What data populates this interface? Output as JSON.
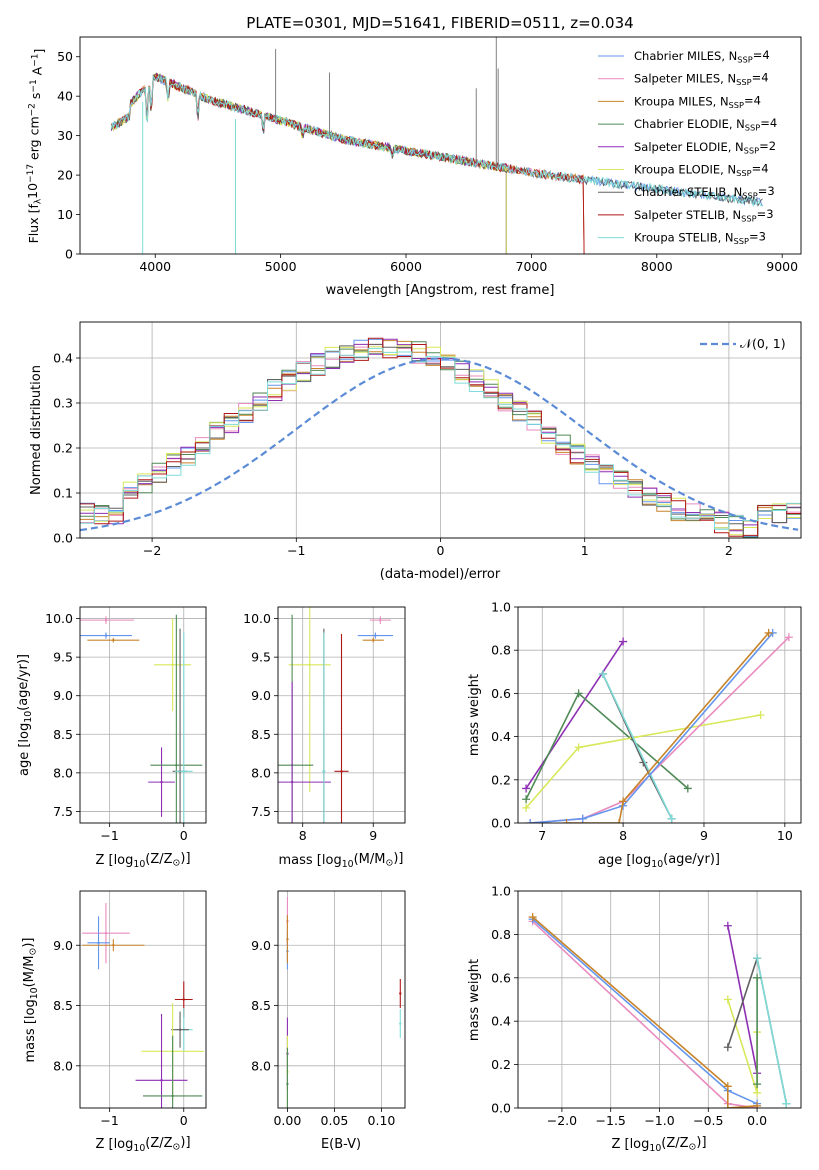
{
  "chart_data": [
    {
      "id": "spectrum",
      "type": "line",
      "title": "PLATE=0301, MJD=51641, FIBERID=0511, z=0.034",
      "xlabel": "wavelength [Angstrom, rest frame]",
      "ylabel_main": "Flux [f",
      "ylabel_sub": "λ",
      "ylabel_rest": "10",
      "ylabel_sup1": "−17",
      "ylabel_tail": " erg cm",
      "ylabel_sup2": "−2",
      "ylabel_tail2": " s",
      "ylabel_sup3": "−1",
      "ylabel_tail3": " A",
      "ylabel_sup4": "−1",
      "ylabel_end": "]",
      "xlim": [
        3400,
        9150
      ],
      "ylim": [
        0,
        55
      ],
      "xticks": [
        4000,
        5000,
        6000,
        7000,
        8000,
        9000
      ],
      "yticks": [
        0,
        10,
        20,
        30,
        40,
        50
      ],
      "grid": false,
      "legend_position": "top-right",
      "series": [
        {
          "name_pre": "Chabrier MILES, N",
          "name_sub": "SSP",
          "name_post": "=4",
          "color": "#6495ed",
          "start": 3650,
          "end": 8850
        },
        {
          "name_pre": "Salpeter MILES, N",
          "name_sub": "SSP",
          "name_post": "=4",
          "color": "#e98bbf",
          "start": 3650,
          "end": 7420
        },
        {
          "name_pre": "Kroupa MILES, N",
          "name_sub": "SSP",
          "name_post": "=4",
          "color": "#c7842a",
          "start": 3650,
          "end": 7420
        },
        {
          "name_pre": "Chabrier ELODIE, N",
          "name_sub": "SSP",
          "name_post": "=4",
          "color": "#4f8a56",
          "start": 3650,
          "end": 6800
        },
        {
          "name_pre": "Salpeter ELODIE, N",
          "name_sub": "SSP",
          "name_post": "=2",
          "color": "#8e2fb4",
          "start": 3650,
          "end": 6800
        },
        {
          "name_pre": "Kroupa ELODIE, N",
          "name_sub": "SSP",
          "name_post": "=4",
          "color": "#d8e85a",
          "start": 3650,
          "end": 6800
        },
        {
          "name_pre": "Chabrier STELIB, N",
          "name_sub": "SSP",
          "name_post": "=3",
          "color": "#606060",
          "start": 3650,
          "end": 8850
        },
        {
          "name_pre": "Salpeter STELIB, N",
          "name_sub": "SSP",
          "name_post": "=3",
          "color": "#b01818",
          "start": 3650,
          "end": 7420
        },
        {
          "name_pre": "Kroupa STELIB, N",
          "name_sub": "SSP",
          "name_post": "=3",
          "color": "#7fdcd8",
          "start": 3650,
          "end": 8850
        }
      ]
    },
    {
      "id": "residuals",
      "type": "line",
      "xlabel": "(data-model)/error",
      "ylabel": "Normed distribution",
      "xlim": [
        -2.5,
        2.5
      ],
      "ylim": [
        0,
        0.48
      ],
      "xticks": [
        -2,
        -1,
        0,
        1,
        2
      ],
      "yticks": [
        0.0,
        0.1,
        0.2,
        0.3,
        0.4
      ],
      "grid": true,
      "legend_position": "top-right",
      "gaussian_label": "𝒩(0, 1)",
      "gaussian_color": "#5b8bd6",
      "bin_width": 0.1
    },
    {
      "id": "age_vs_Z",
      "type": "scatter",
      "xlabel_pre": "Z [log",
      "xlabel_sub": "10",
      "xlabel_post": "(Z/Z",
      "xlabel_sub2": "⊙",
      "xlabel_end": ")]",
      "ylabel_pre": "age  [log",
      "ylabel_sub": "10",
      "ylabel_post": "(age/yr)]",
      "xlim": [
        -1.4,
        0.3
      ],
      "ylim": [
        7.35,
        10.15
      ],
      "xticks": [
        -1,
        0
      ],
      "yticks": [
        7.5,
        8.0,
        8.5,
        9.0,
        9.5,
        10.0
      ],
      "grid": true,
      "points": [
        {
          "color": "#e98bbf",
          "x": -1.05,
          "y": 9.98,
          "xerr": 0.38,
          "yerr": 0.05
        },
        {
          "color": "#6495ed",
          "x": -1.05,
          "y": 9.78,
          "xerr": 0.35,
          "yerr": 0.04
        },
        {
          "color": "#c7842a",
          "x": -0.95,
          "y": 9.72,
          "xerr": 0.35,
          "yerr": 0.03
        },
        {
          "color": "#d8e85a",
          "x": -0.15,
          "y": 9.4,
          "xerr": 0.25,
          "yerr": 0.6
        },
        {
          "color": "#8e2fb4",
          "x": -0.3,
          "y": 7.88,
          "xerr": 0.18,
          "yerr": 0.45
        },
        {
          "color": "#4f8a56",
          "x": -0.1,
          "y": 8.1,
          "xerr": 0.35,
          "yerr": 1.95
        },
        {
          "color": "#606060",
          "x": -0.05,
          "y": 8.02,
          "xerr": 0.1,
          "yerr": 1.85
        },
        {
          "color": "#7fdcd8",
          "x": 0.0,
          "y": 8.02,
          "xerr": 0.12,
          "yerr": 1.8
        }
      ]
    },
    {
      "id": "age_vs_mass",
      "type": "scatter",
      "xlabel_pre": "mass [log",
      "xlabel_sub": "10",
      "xlabel_post": "(M/M",
      "xlabel_sub2": "⊙",
      "xlabel_end": ")]",
      "xlim": [
        7.65,
        9.45
      ],
      "ylim": [
        7.35,
        10.15
      ],
      "xticks": [
        8,
        9
      ],
      "yticks": [
        7.5,
        8.0,
        8.5,
        9.0,
        9.5,
        10.0
      ],
      "grid": true,
      "points": [
        {
          "color": "#e98bbf",
          "x": 9.1,
          "y": 9.98,
          "xerr": 0.15,
          "yerr": 0.05
        },
        {
          "color": "#6495ed",
          "x": 9.03,
          "y": 9.78,
          "xerr": 0.25,
          "yerr": 0.04
        },
        {
          "color": "#c7842a",
          "x": 9.0,
          "y": 9.72,
          "xerr": 0.15,
          "yerr": 0.03
        },
        {
          "color": "#d8e85a",
          "x": 8.1,
          "y": 9.4,
          "xerr": 0.3,
          "yerr": 1.65
        },
        {
          "color": "#4f8a56",
          "x": 7.85,
          "y": 8.1,
          "xerr": 0.3,
          "yerr": 1.95
        },
        {
          "color": "#8e2fb4",
          "x": 7.85,
          "y": 7.88,
          "xerr": 0.55,
          "yerr": 1.3
        },
        {
          "color": "#606060",
          "x": 8.3,
          "y": 8.02,
          "xerr": 0.02,
          "yerr": 1.85
        },
        {
          "color": "#7fdcd8",
          "x": 8.3,
          "y": 8.02,
          "xerr": 0.02,
          "yerr": 1.8
        },
        {
          "color": "#b01818",
          "x": 8.55,
          "y": 8.02,
          "xerr": 0.1,
          "yerr": 1.78
        }
      ]
    },
    {
      "id": "weight_vs_age",
      "type": "line",
      "xlabel_pre": "age  [log",
      "xlabel_sub": "10",
      "xlabel_post": "(age/yr)]",
      "ylabel": "mass weight",
      "xlim": [
        6.7,
        10.2
      ],
      "ylim": [
        0,
        1.0
      ],
      "xticks": [
        7,
        8,
        9,
        10
      ],
      "yticks": [
        0.0,
        0.2,
        0.4,
        0.6,
        0.8,
        1.0
      ],
      "grid": true,
      "series": [
        {
          "color": "#8e2fb4",
          "points": [
            [
              6.8,
              0.16
            ],
            [
              8.0,
              0.84
            ]
          ]
        },
        {
          "color": "#4f8a56",
          "points": [
            [
              6.8,
              0.11
            ],
            [
              7.45,
              0.6
            ],
            [
              8.8,
              0.16
            ]
          ]
        },
        {
          "color": "#d8e85a",
          "points": [
            [
              6.8,
              0.07
            ],
            [
              7.45,
              0.35
            ],
            [
              9.7,
              0.5
            ]
          ]
        },
        {
          "color": "#606060",
          "points": [
            [
              7.75,
              0.69
            ],
            [
              8.25,
              0.28
            ],
            [
              8.6,
              0.02
            ]
          ]
        },
        {
          "color": "#7fdcd8",
          "points": [
            [
              7.75,
              0.69
            ],
            [
              8.6,
              0.02
            ]
          ]
        },
        {
          "color": "#e98bbf",
          "points": [
            [
              6.85,
              0.0
            ],
            [
              7.5,
              0.02
            ],
            [
              8.0,
              0.1
            ],
            [
              10.05,
              0.86
            ]
          ]
        },
        {
          "color": "#6495ed",
          "points": [
            [
              6.85,
              0.0
            ],
            [
              7.5,
              0.02
            ],
            [
              8.0,
              0.08
            ],
            [
              9.85,
              0.88
            ]
          ]
        },
        {
          "color": "#c7842a",
          "points": [
            [
              7.3,
              0.0
            ],
            [
              7.95,
              0.0
            ],
            [
              8.0,
              0.1
            ],
            [
              9.8,
              0.88
            ]
          ]
        }
      ]
    },
    {
      "id": "mass_vs_Z",
      "type": "scatter",
      "xlabel_pre": "Z [log",
      "xlabel_sub": "10",
      "xlabel_post": "(Z/Z",
      "xlabel_sub2": "⊙",
      "xlabel_end": ")]",
      "ylabel_pre": "mass [log",
      "ylabel_sub": "10",
      "ylabel_post": "(M/M",
      "ylabel_sub2": "⊙",
      "ylabel_end": ")]",
      "xlim": [
        -1.4,
        0.3
      ],
      "ylim": [
        7.65,
        9.45
      ],
      "xticks": [
        -1,
        0
      ],
      "yticks": [
        8.0,
        8.5,
        9.0
      ],
      "grid": true,
      "points": [
        {
          "color": "#e98bbf",
          "x": -1.05,
          "y": 9.1,
          "xerr": 0.32,
          "yerr": 0.25
        },
        {
          "color": "#6495ed",
          "x": -1.15,
          "y": 9.02,
          "xerr": 0.15,
          "yerr": 0.22
        },
        {
          "color": "#c7842a",
          "x": -0.95,
          "y": 9.0,
          "xerr": 0.42,
          "yerr": 0.05
        },
        {
          "color": "#b01818",
          "x": 0.0,
          "y": 8.55,
          "xerr": 0.12,
          "yerr": 0.15
        },
        {
          "color": "#7fdcd8",
          "x": 0.0,
          "y": 8.3,
          "xerr": 0.12,
          "yerr": 0.18
        },
        {
          "color": "#606060",
          "x": -0.05,
          "y": 8.3,
          "xerr": 0.12,
          "yerr": 0.15
        },
        {
          "color": "#d8e85a",
          "x": -0.15,
          "y": 8.12,
          "xerr": 0.42,
          "yerr": 0.4
        },
        {
          "color": "#8e2fb4",
          "x": -0.3,
          "y": 7.88,
          "xerr": 0.35,
          "yerr": 0.55
        },
        {
          "color": "#4f8a56",
          "x": -0.15,
          "y": 7.75,
          "xerr": 0.4,
          "yerr": 0.5
        }
      ]
    },
    {
      "id": "mass_vs_EBV",
      "type": "scatter",
      "xlabel": "E(B-V)",
      "xlim": [
        -0.01,
        0.125
      ],
      "ylim": [
        7.65,
        9.45
      ],
      "xticks": [
        0.0,
        0.05,
        0.1
      ],
      "xtick_labels": [
        "0.00",
        "0.05",
        "0.10"
      ],
      "yticks": [
        8.0,
        8.5,
        9.0
      ],
      "grid": true,
      "points": [
        {
          "color": "#e98bbf",
          "x": 0.0,
          "y": 9.2,
          "yerr": 0.2
        },
        {
          "color": "#6495ed",
          "x": 0.0,
          "y": 8.95,
          "yerr": 0.15
        },
        {
          "color": "#c7842a",
          "x": 0.0,
          "y": 9.05,
          "yerr": 0.2
        },
        {
          "color": "#8e2fb4",
          "x": 0.0,
          "y": 8.1,
          "yerr": 0.3
        },
        {
          "color": "#d8e85a",
          "x": 0.0,
          "y": 7.95,
          "yerr": 0.3
        },
        {
          "color": "#4f8a56",
          "x": 0.0,
          "y": 7.85,
          "yerr": 0.3
        },
        {
          "color": "#b01818",
          "x": 0.12,
          "y": 8.6,
          "yerr": 0.12
        },
        {
          "color": "#7fdcd8",
          "x": 0.12,
          "y": 8.35,
          "yerr": 0.12
        }
      ]
    },
    {
      "id": "weight_vs_Z",
      "type": "line",
      "xlabel_pre": "Z [log",
      "xlabel_sub": "10",
      "xlabel_post": "(Z/Z",
      "xlabel_sub2": "⊙",
      "xlabel_end": ")]",
      "ylabel": "mass weight",
      "xlim": [
        -2.45,
        0.45
      ],
      "ylim": [
        0,
        1.0
      ],
      "xticks": [
        -2.0,
        -1.5,
        -1.0,
        -0.5,
        0.0
      ],
      "xtick_labels": [
        "−2.0",
        "−1.5",
        "−1.0",
        "−0.5",
        "0.0"
      ],
      "yticks": [
        0.0,
        0.2,
        0.4,
        0.6,
        0.8,
        1.0
      ],
      "grid": true,
      "series": [
        {
          "color": "#e98bbf",
          "points": [
            [
              -2.3,
              0.86
            ],
            [
              -0.3,
              0.02
            ],
            [
              0.0,
              0.0
            ]
          ]
        },
        {
          "color": "#6495ed",
          "points": [
            [
              -2.3,
              0.87
            ],
            [
              -0.3,
              0.08
            ],
            [
              0.0,
              0.02
            ]
          ]
        },
        {
          "color": "#c7842a",
          "points": [
            [
              -2.3,
              0.88
            ],
            [
              -0.3,
              0.1
            ],
            [
              -0.3,
              0.0
            ],
            [
              0.0,
              0.01
            ]
          ]
        },
        {
          "color": "#8e2fb4",
          "points": [
            [
              -0.3,
              0.84
            ],
            [
              0.0,
              0.16
            ]
          ]
        },
        {
          "color": "#d8e85a",
          "points": [
            [
              -0.3,
              0.5
            ],
            [
              0.0,
              0.07
            ],
            [
              0.0,
              0.35
            ]
          ]
        },
        {
          "color": "#606060",
          "points": [
            [
              -0.3,
              0.28
            ],
            [
              0.0,
              0.69
            ],
            [
              0.3,
              0.02
            ]
          ]
        },
        {
          "color": "#7fdcd8",
          "points": [
            [
              0.0,
              0.69
            ],
            [
              0.3,
              0.02
            ]
          ]
        },
        {
          "color": "#4f8a56",
          "points": [
            [
              0.0,
              0.6
            ],
            [
              0.0,
              0.11
            ]
          ]
        }
      ]
    }
  ]
}
